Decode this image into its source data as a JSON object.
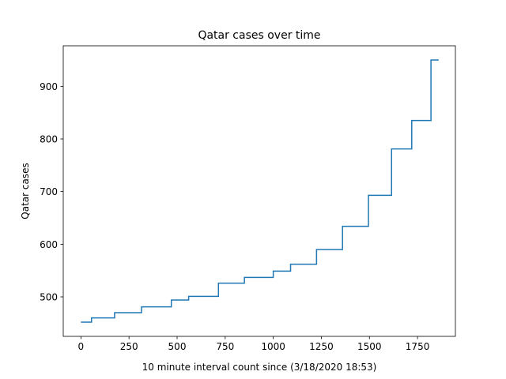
{
  "chart_data": {
    "type": "line",
    "title": "Qatar cases over time",
    "xlabel": "10 minute interval count since (3/18/2020 18:53)",
    "ylabel": "Qatar cases",
    "xlim": [
      -92,
      1947
    ],
    "ylim": [
      425,
      977
    ],
    "xticks": [
      0,
      250,
      500,
      750,
      1000,
      1250,
      1500,
      1750
    ],
    "yticks": [
      500,
      600,
      700,
      800,
      900
    ],
    "grid": false,
    "step": "post",
    "line_color": "#1f77b4",
    "series": [
      {
        "x": [
          0,
          55,
          175,
          315,
          470,
          560,
          715,
          850,
          1000,
          1090,
          1225,
          1360,
          1495,
          1615,
          1720,
          1820,
          1860
        ],
        "y": [
          452,
          460,
          470,
          481,
          494,
          501,
          526,
          537,
          549,
          562,
          590,
          634,
          693,
          781,
          835,
          950,
          950
        ]
      }
    ]
  }
}
